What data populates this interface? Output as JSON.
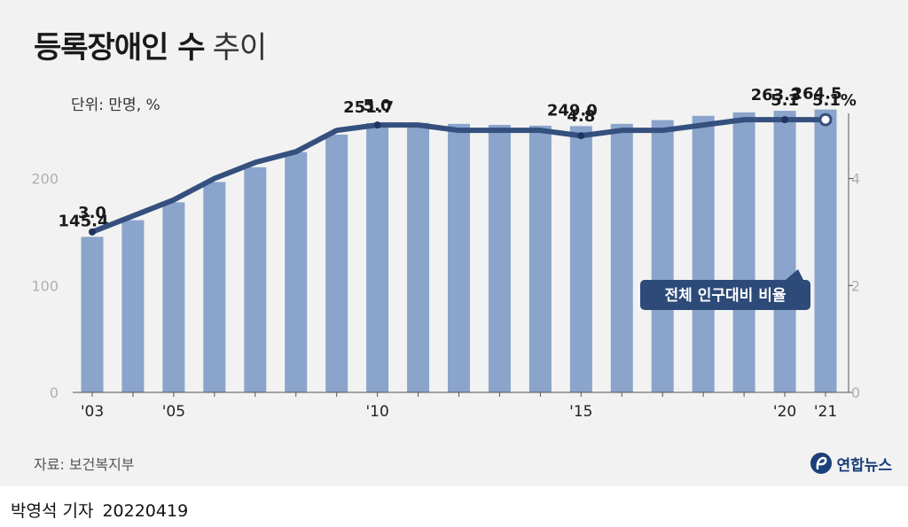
{
  "title": {
    "main": "등록장애인 수",
    "sub": "추이"
  },
  "unit": "단위: 만명, %",
  "source": "자료: 보건복지부",
  "logo": {
    "text": "연합뉴스",
    "icon": "yonhap-logo-icon"
  },
  "byline": {
    "name": "박영석 기자",
    "date": "20220419"
  },
  "colors": {
    "bar": "#8aa4cb",
    "line": "#35507e",
    "legend_bg": "#2d4a78",
    "background": "#f2f2f2"
  },
  "chart_data": {
    "type": "bar",
    "x": [
      2003,
      2004,
      2005,
      2006,
      2007,
      2008,
      2009,
      2010,
      2011,
      2012,
      2013,
      2014,
      2015,
      2016,
      2017,
      2018,
      2019,
      2020,
      2021
    ],
    "x_tick_labels": {
      "2003": "'03",
      "2005": "'05",
      "2010": "'10",
      "2015": "'15",
      "2020": "'20",
      "2021": "'21"
    },
    "series": [
      {
        "type": "bar",
        "axis": "left",
        "values": [
          145.4,
          161.0,
          177.7,
          196.7,
          210.5,
          224.7,
          241.0,
          251.7,
          251.9,
          251.1,
          250.1,
          249.4,
          249.0,
          251.1,
          254.6,
          258.6,
          261.8,
          263.3,
          264.5
        ],
        "labels": {
          "2003": "145.4",
          "2010": "251.7",
          "2015": "249.0",
          "2020": "263.3",
          "2021": "264.5"
        }
      },
      {
        "name": "전체 인구대비 비율",
        "type": "line",
        "axis": "right",
        "values": [
          3.0,
          3.3,
          3.6,
          4.0,
          4.3,
          4.5,
          4.9,
          5.0,
          5.0,
          4.9,
          4.9,
          4.9,
          4.8,
          4.9,
          4.9,
          5.0,
          5.1,
          5.1,
          5.1
        ],
        "labels": {
          "2003": "3.0",
          "2010": "5.0",
          "2015": "4.8",
          "2020": "5.1",
          "2021": "5.1%"
        }
      }
    ],
    "y_left": {
      "range": [
        0,
        270
      ],
      "ticks": [
        "0",
        "100",
        "200"
      ]
    },
    "y_right": {
      "range": [
        0,
        5.4
      ],
      "ticks": [
        "0",
        "2",
        "4"
      ]
    },
    "grid": false,
    "legend": "line-label"
  }
}
